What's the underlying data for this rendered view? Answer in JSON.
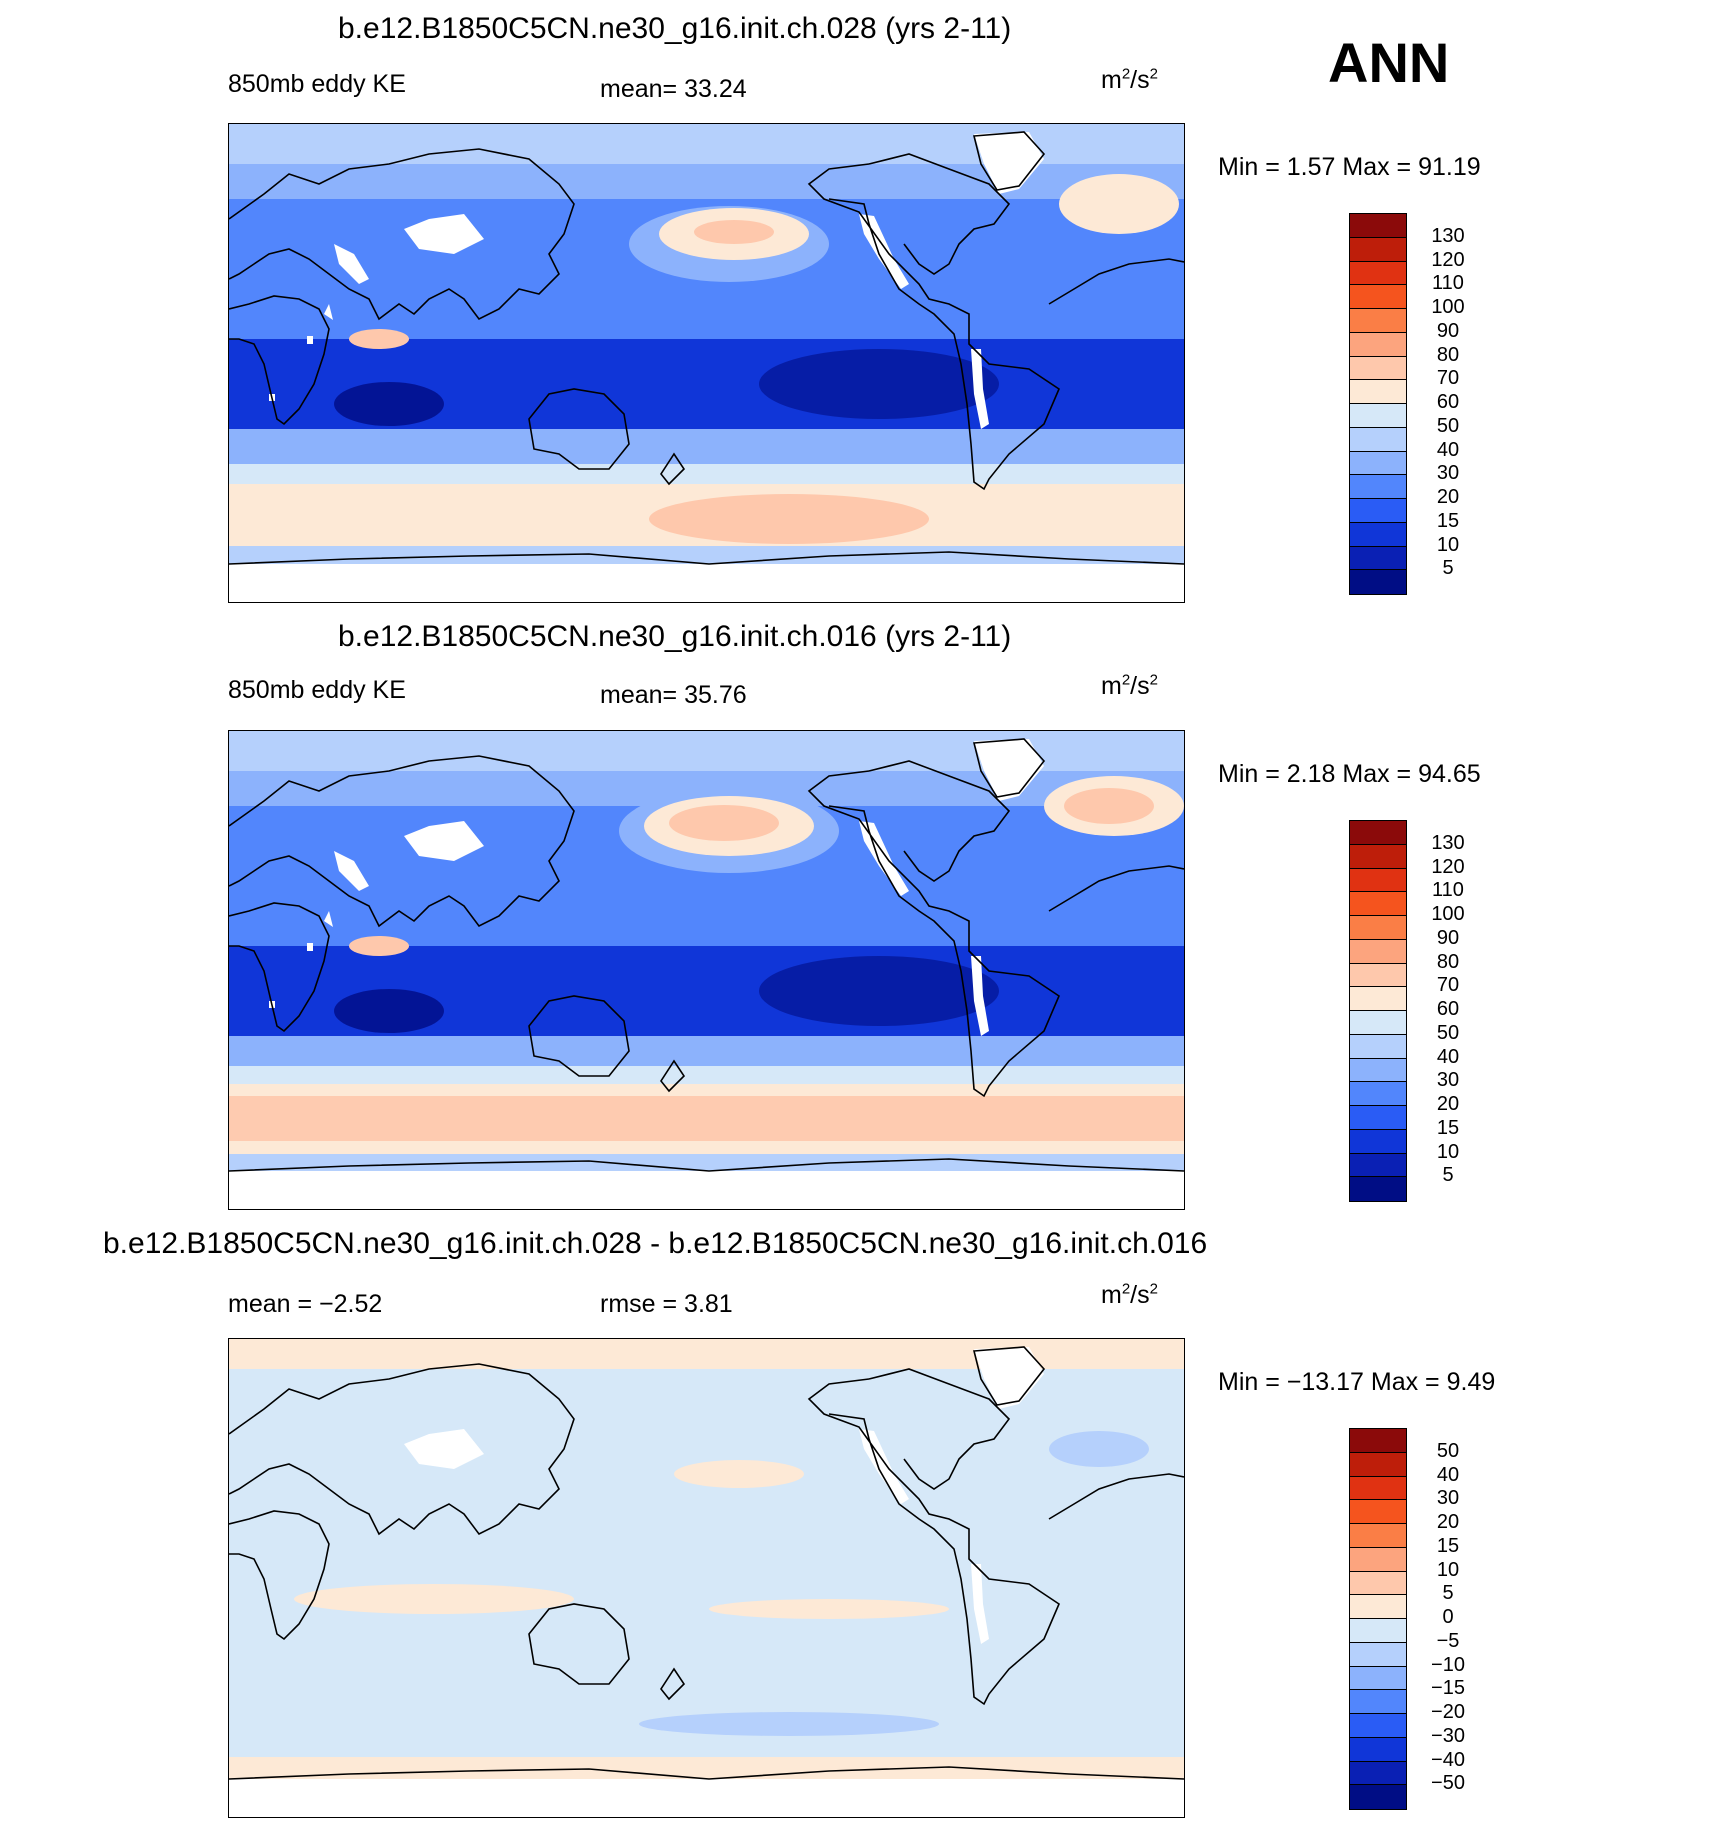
{
  "header": {
    "season": "ANN"
  },
  "panels": [
    {
      "title": "b.e12.B1850C5CN.ne30_g16.init.ch.028 (yrs 2-11)",
      "left_label": "850mb eddy KE",
      "center_label": "mean=  33.24",
      "units": "m2/s2",
      "stats": "Min =    1.57 Max =   91.19",
      "colorbar": {
        "labels": [
          "130",
          "120",
          "110",
          "100",
          "90",
          "80",
          "70",
          "60",
          "50",
          "40",
          "30",
          "20",
          "15",
          "10",
          "5"
        ],
        "colors": [
          "#8b0a0a",
          "#be1e0a",
          "#e03212",
          "#f5541e",
          "#fa7e46",
          "#fca47e",
          "#fec8ac",
          "#fde9d6",
          "#d6e8f8",
          "#b5d0fc",
          "#8cb2fc",
          "#5286fc",
          "#2a5cf5",
          "#1036d8",
          "#0a20b4",
          "#000d85"
        ]
      }
    },
    {
      "title": "b.e12.B1850C5CN.ne30_g16.init.ch.016 (yrs 2-11)",
      "left_label": "850mb eddy KE",
      "center_label": "mean=  35.76",
      "units": "m2/s2",
      "stats": "Min =    2.18 Max =   94.65",
      "colorbar": {
        "labels": [
          "130",
          "120",
          "110",
          "100",
          "90",
          "80",
          "70",
          "60",
          "50",
          "40",
          "30",
          "20",
          "15",
          "10",
          "5"
        ],
        "colors": [
          "#8b0a0a",
          "#be1e0a",
          "#e03212",
          "#f5541e",
          "#fa7e46",
          "#fca47e",
          "#fec8ac",
          "#fde9d6",
          "#d6e8f8",
          "#b5d0fc",
          "#8cb2fc",
          "#5286fc",
          "#2a5cf5",
          "#1036d8",
          "#0a20b4",
          "#000d85"
        ]
      }
    },
    {
      "title": "b.e12.B1850C5CN.ne30_g16.init.ch.028 - b.e12.B1850C5CN.ne30_g16.init.ch.016",
      "left_label": "mean =   −2.52",
      "center_label": "rmse =    3.81",
      "units": "m2/s2",
      "stats": "Min = −13.17 Max =    9.49",
      "colorbar": {
        "labels": [
          "50",
          "40",
          "30",
          "20",
          "15",
          "10",
          "5",
          "0",
          "−5",
          "−10",
          "−15",
          "−20",
          "−30",
          "−40",
          "−50"
        ],
        "colors": [
          "#8b0a0a",
          "#be1e0a",
          "#e03212",
          "#f5541e",
          "#fa7e46",
          "#fca47e",
          "#fec8ac",
          "#fde9d6",
          "#d6e8f8",
          "#b5d0fc",
          "#8cb2fc",
          "#5286fc",
          "#2a5cf5",
          "#1036d8",
          "#0a20b4",
          "#000d85"
        ]
      }
    }
  ]
}
